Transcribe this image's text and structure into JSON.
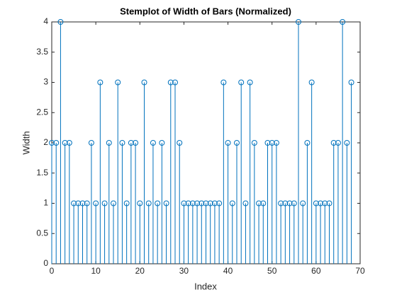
{
  "chart_data": {
    "type": "stem",
    "title": "Stemplot of Width of Bars (Normalized)",
    "xlabel": "Index",
    "ylabel": "Width",
    "color": "#0072bd",
    "x": [
      0,
      1,
      2,
      3,
      4,
      5,
      6,
      7,
      8,
      9,
      10,
      11,
      12,
      13,
      14,
      15,
      16,
      17,
      18,
      19,
      20,
      21,
      22,
      23,
      24,
      25,
      26,
      27,
      28,
      29,
      30,
      31,
      32,
      33,
      34,
      35,
      36,
      37,
      38,
      39,
      40,
      41,
      42,
      43,
      44,
      45,
      46,
      47,
      48,
      49,
      50,
      51,
      52,
      53,
      54,
      55,
      56,
      57,
      58,
      59,
      60,
      61,
      62,
      63,
      64,
      65,
      66,
      67,
      68
    ],
    "values": [
      2,
      2,
      4,
      2,
      2,
      1,
      1,
      1,
      1,
      2,
      1,
      3,
      1,
      2,
      1,
      3,
      2,
      1,
      2,
      2,
      1,
      3,
      1,
      2,
      1,
      2,
      1,
      3,
      3,
      2,
      1,
      1,
      1,
      1,
      1,
      1,
      1,
      1,
      1,
      3,
      2,
      1,
      2,
      3,
      1,
      3,
      2,
      1,
      1,
      2,
      2,
      2,
      1,
      1,
      1,
      1,
      4,
      1,
      2,
      3,
      1,
      1,
      1,
      1,
      2,
      2,
      4,
      2,
      3
    ],
    "xlim": [
      0,
      70
    ],
    "xticks": [
      0,
      10,
      20,
      30,
      40,
      50,
      60,
      70
    ],
    "ylim": [
      0,
      4
    ],
    "yticks": [
      0,
      0.5,
      1,
      1.5,
      2,
      2.5,
      3,
      3.5,
      4
    ]
  }
}
